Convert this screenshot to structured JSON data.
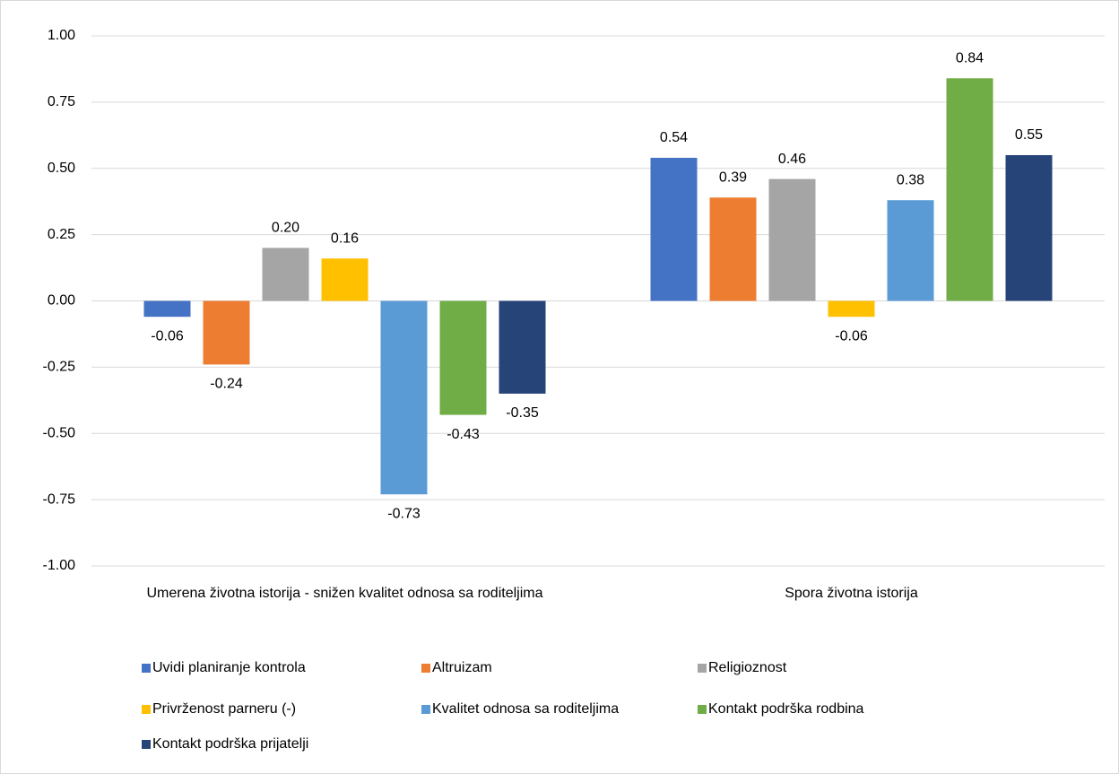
{
  "chart_data": {
    "type": "bar",
    "categories": [
      "Umerena životna istorija - snižen kvalitet odnosa sa roditeljima",
      "Spora životna istorija"
    ],
    "series": [
      {
        "name": "Uvidi planiranje kontrola",
        "color": "#4472c4",
        "values": [
          -0.06,
          0.54
        ],
        "value_labels": [
          "-0.06",
          "0.54"
        ]
      },
      {
        "name": "Altruizam",
        "color": "#ed7d31",
        "values": [
          -0.24,
          0.39
        ],
        "value_labels": [
          "-0.24",
          "0.39"
        ]
      },
      {
        "name": "Religioznost",
        "color": "#a5a5a5",
        "values": [
          0.2,
          0.46
        ],
        "value_labels": [
          "0.20",
          "0.46"
        ]
      },
      {
        "name": "Privrženost parneru (-)",
        "color": "#ffc000",
        "values": [
          0.16,
          -0.06
        ],
        "value_labels": [
          "0.16",
          "-0.06"
        ]
      },
      {
        "name": "Kvalitet odnosa sa roditeljima",
        "color": "#5b9bd5",
        "values": [
          -0.73,
          0.38
        ],
        "value_labels": [
          "-0.73",
          "0.38"
        ]
      },
      {
        "name": "Kontakt podrška rodbina",
        "color": "#70ad47",
        "values": [
          -0.43,
          0.84
        ],
        "value_labels": [
          "-0.43",
          "0.84"
        ]
      },
      {
        "name": "Kontakt podrška prijatelji",
        "color": "#264478",
        "values": [
          -0.35,
          0.55
        ],
        "value_labels": [
          "-0.35",
          "0.55"
        ]
      }
    ],
    "ylim": [
      -1,
      1
    ],
    "yticks": [
      {
        "value": -1,
        "label": "-1.00"
      },
      {
        "value": -0.75,
        "label": "-0.75"
      },
      {
        "value": -0.5,
        "label": "-0.50"
      },
      {
        "value": -0.25,
        "label": "-0.25"
      },
      {
        "value": 0,
        "label": "0.00"
      },
      {
        "value": 0.25,
        "label": "0.25"
      },
      {
        "value": 0.5,
        "label": "0.50"
      },
      {
        "value": 0.75,
        "label": "0.75"
      },
      {
        "value": 1,
        "label": "1.00"
      }
    ],
    "grid": true,
    "legend": "bottom"
  }
}
